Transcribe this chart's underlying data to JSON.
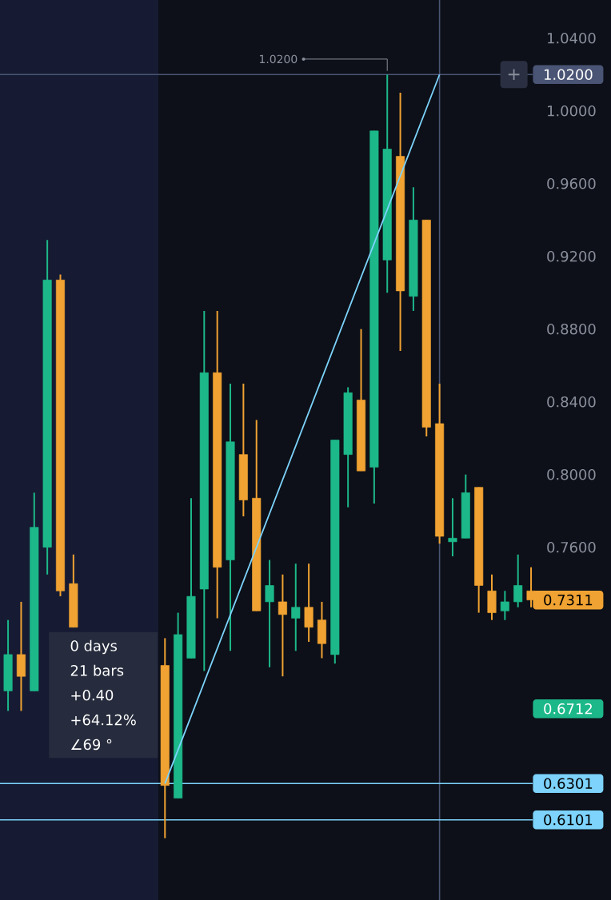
{
  "chart_data": {
    "type": "candlestick",
    "categories": [
      null,
      null,
      null,
      null,
      null,
      null,
      null,
      null,
      null,
      null,
      null,
      null,
      null,
      null,
      null,
      null,
      null,
      null,
      null,
      null,
      null,
      null,
      null,
      null,
      null,
      null,
      null,
      null,
      null,
      null,
      null,
      null,
      null,
      null,
      null,
      null,
      null,
      null,
      null,
      null,
      null
    ],
    "ohlc": [
      [
        0.681,
        0.72,
        0.67,
        0.701
      ],
      [
        0.701,
        0.73,
        0.67,
        0.689
      ],
      [
        0.681,
        0.79,
        0.681,
        0.771
      ],
      [
        0.76,
        0.929,
        0.745,
        0.907
      ],
      [
        0.907,
        0.91,
        0.733,
        0.736
      ],
      [
        0.74,
        0.756,
        0.716,
        0.716
      ],
      null,
      null,
      null,
      null,
      null,
      null,
      [
        0.695,
        0.71,
        0.6,
        0.629
      ],
      [
        0.622,
        0.724,
        0.622,
        0.712
      ],
      [
        0.699,
        0.787,
        0.699,
        0.733
      ],
      [
        0.737,
        0.89,
        0.692,
        0.856
      ],
      [
        0.856,
        0.89,
        0.721,
        0.749
      ],
      [
        0.753,
        0.85,
        0.703,
        0.818
      ],
      [
        0.811,
        0.85,
        0.777,
        0.786
      ],
      [
        0.787,
        0.83,
        0.725,
        0.725
      ],
      [
        0.73,
        0.753,
        0.694,
        0.739
      ],
      [
        0.73,
        0.745,
        0.689,
        0.723
      ],
      [
        0.721,
        0.751,
        0.703,
        0.727
      ],
      [
        0.727,
        0.751,
        0.708,
        0.716
      ],
      [
        0.72,
        0.73,
        0.699,
        0.707
      ],
      [
        0.701,
        0.819,
        0.696,
        0.819
      ],
      [
        0.811,
        0.848,
        0.782,
        0.845
      ],
      [
        0.841,
        0.88,
        0.802,
        0.802
      ],
      [
        0.804,
        0.989,
        0.784,
        0.989
      ],
      [
        0.918,
        1.02,
        0.9,
        0.979
      ],
      [
        0.975,
        1.01,
        0.868,
        0.901
      ],
      [
        0.898,
        0.958,
        0.89,
        0.94
      ],
      [
        0.94,
        0.94,
        0.821,
        0.826
      ],
      [
        0.828,
        0.85,
        0.762,
        0.766
      ],
      [
        0.763,
        0.787,
        0.755,
        0.765
      ],
      [
        0.765,
        0.8,
        0.765,
        0.79
      ],
      [
        0.793,
        0.793,
        0.724,
        0.739
      ],
      [
        0.736,
        0.745,
        0.72,
        0.724
      ],
      [
        0.725,
        0.736,
        0.72,
        0.73
      ],
      [
        0.73,
        0.756,
        0.727,
        0.739
      ],
      [
        0.736,
        0.749,
        0.727,
        0.731
      ]
    ],
    "colors": [
      "#1db88a",
      "#f0a232",
      "#1db88a",
      "#1db88a",
      "#f0a232",
      "#f0a232",
      "#f0a232",
      null,
      null,
      null,
      null,
      null,
      "#f0a232",
      "#1db88a",
      "#1db88a",
      "#1db88a",
      "#f0a232",
      "#1db88a",
      "#f0a232",
      "#f0a232",
      "#1db88a",
      "#f0a232",
      "#1db88a",
      "#f0a232",
      "#f0a232",
      "#1db88a",
      "#1db88a",
      "#f0a232",
      "#1db88a",
      "#1db88a",
      "#f0a232",
      "#1db88a",
      "#f0a232",
      "#f0a232",
      "#1db88a",
      "#1db88a",
      "#f0a232",
      "#f0a232",
      "#1db88a",
      "#1db88a",
      "#f0a232"
    ],
    "series": [
      {
        "type": "line",
        "values": [
          null,
          null,
          null,
          null,
          null,
          null,
          null,
          null,
          null,
          null,
          null,
          null,
          0.63,
          null,
          null,
          null,
          null,
          null,
          null,
          null,
          null,
          null,
          null,
          null,
          null,
          null,
          null,
          null,
          null,
          null,
          null,
          null,
          null,
          1.02,
          null,
          null,
          null,
          null,
          null,
          null,
          null
        ],
        "color": "#7dd3fc"
      }
    ],
    "ylim": [
      0.566,
      1.061
    ],
    "yticks": [
      {
        "value": 0.76,
        "label": "0.7600"
      },
      {
        "value": 0.8,
        "label": "0.8000"
      },
      {
        "value": 0.84,
        "label": "0.8400"
      },
      {
        "value": 0.88,
        "label": "0.8800"
      },
      {
        "value": 0.92,
        "label": "0.9200"
      },
      {
        "value": 0.96,
        "label": "0.9600"
      },
      {
        "value": 1.0,
        "label": "1.0000"
      },
      {
        "value": 1.04,
        "label": "1.0400"
      }
    ],
    "ref_lines": [
      {
        "axis": "y",
        "value": 1.02,
        "label": "1.0200",
        "color": "#4a5575"
      },
      {
        "axis": "y",
        "value": 0.6301,
        "label": "0.6301",
        "color": "#7dd3fc"
      },
      {
        "axis": "y",
        "value": 0.6101,
        "label": "0.6101",
        "color": "#7dd3fc"
      }
    ],
    "annotations": [
      "0 days",
      "21 bars",
      "+0.40",
      "+64.12%",
      "∠69 °",
      "1.0200",
      "+",
      "0.7311",
      "0.6712"
    ]
  }
}
